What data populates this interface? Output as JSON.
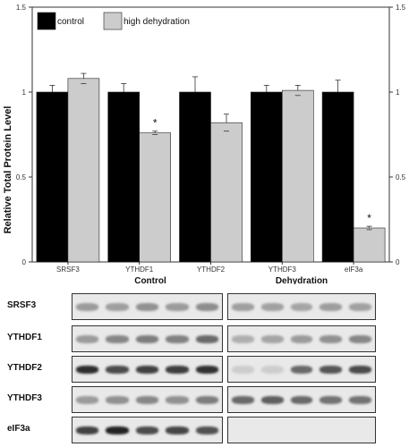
{
  "chart_data": {
    "type": "bar",
    "categories": [
      "SRSF3",
      "YTHDF1",
      "YTHDF2",
      "YTHDF3",
      "eIF3a"
    ],
    "series": [
      {
        "name": "control",
        "color": "#000000",
        "values": [
          1.0,
          1.0,
          1.0,
          1.0,
          1.0
        ],
        "errors": [
          0.04,
          0.05,
          0.09,
          0.04,
          0.07
        ]
      },
      {
        "name": "high dehydration",
        "color": "#cccccc",
        "values": [
          1.08,
          0.76,
          0.82,
          1.01,
          0.2
        ],
        "errors": [
          0.03,
          0.01,
          0.05,
          0.03,
          0.01
        ]
      }
    ],
    "significance": [
      {
        "category": "YTHDF1",
        "series": "high dehydration",
        "mark": "*"
      },
      {
        "category": "eIF3a",
        "series": "high dehydration",
        "mark": "*"
      }
    ],
    "ylabel": "Relative Total Protein Level",
    "ylim": [
      0,
      1.5
    ],
    "yticks": [
      "0",
      "0.5",
      "1",
      "1.5"
    ],
    "legend_position": "top-left",
    "grid": false
  },
  "blot": {
    "group_labels": [
      "Control",
      "Dehydration"
    ],
    "rows": [
      {
        "label": "SRSF3",
        "control": [
          0.35,
          0.33,
          0.4,
          0.35,
          0.42
        ],
        "dehydration": [
          0.33,
          0.32,
          0.3,
          0.34,
          0.32
        ]
      },
      {
        "label": "YTHDF1",
        "control": [
          0.35,
          0.45,
          0.5,
          0.48,
          0.6
        ],
        "dehydration": [
          0.25,
          0.3,
          0.35,
          0.4,
          0.45
        ]
      },
      {
        "label": "YTHDF2",
        "control": [
          0.9,
          0.75,
          0.8,
          0.82,
          0.88
        ],
        "dehydration": [
          0.1,
          0.1,
          0.6,
          0.7,
          0.75
        ]
      },
      {
        "label": "YTHDF3",
        "control": [
          0.35,
          0.4,
          0.45,
          0.4,
          0.5
        ],
        "dehydration": [
          0.6,
          0.65,
          0.6,
          0.55,
          0.55
        ]
      },
      {
        "label": "eIF3a",
        "control": [
          0.8,
          0.95,
          0.75,
          0.78,
          0.72
        ],
        "dehydration": [
          0,
          0,
          0,
          0,
          0
        ]
      }
    ]
  }
}
